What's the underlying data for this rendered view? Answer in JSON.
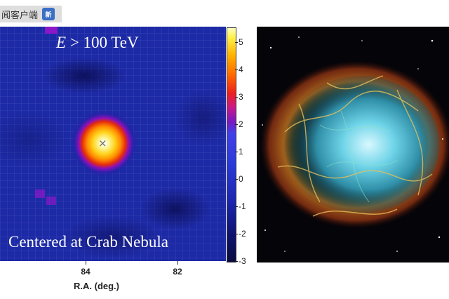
{
  "app_badge": {
    "label": "闻客户端",
    "logo_icon": "news-app-icon"
  },
  "skymap": {
    "energy_label_var": "E",
    "energy_label_rest": " > 100 TeV",
    "caption": "Centered at Crab Nebula",
    "marker_symbol": "×",
    "x_axis_title": "R.A. (deg.)",
    "x_ticks": [
      "84",
      "82"
    ]
  },
  "colorbar": {
    "ticks": [
      "5",
      "4",
      "3",
      "2",
      "1",
      "0",
      "-1",
      "-2",
      "-3"
    ],
    "range": [
      -3,
      5.5
    ]
  },
  "nebula_image": {
    "description_icon": "crab-nebula-photo"
  }
}
